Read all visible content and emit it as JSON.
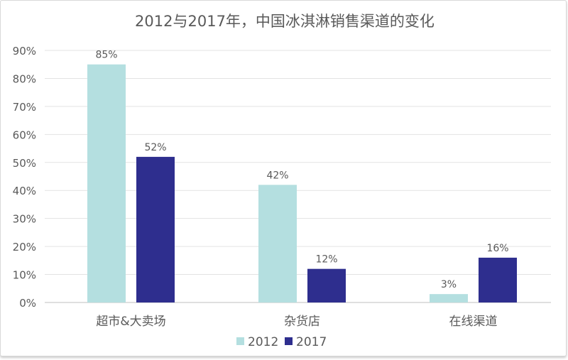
{
  "chart_data": {
    "type": "bar",
    "title": "2012与2017年，中国冰淇淋销售渠道的变化",
    "categories": [
      "超市&大卖场",
      "杂货店",
      "在线渠道"
    ],
    "series": [
      {
        "name": "2012",
        "values": [
          85,
          42,
          3
        ],
        "color": "#b4dfe0"
      },
      {
        "name": "2017",
        "values": [
          52,
          12,
          16
        ],
        "color": "#2e2e8e"
      }
    ],
    "data_labels": [
      [
        "85%",
        "42%",
        "3%"
      ],
      [
        "52%",
        "12%",
        "16%"
      ]
    ],
    "ylim": [
      0,
      90
    ],
    "yticks": [
      "0%",
      "10%",
      "20%",
      "30%",
      "40%",
      "50%",
      "60%",
      "70%",
      "80%",
      "90%"
    ],
    "grid": true,
    "legend": "bottom"
  }
}
